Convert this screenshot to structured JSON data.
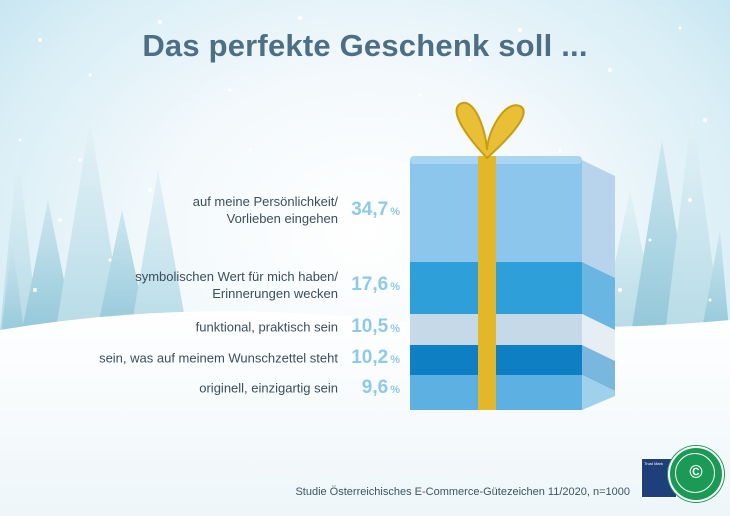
{
  "title": "Das perfekte Geschenk soll ...",
  "source": "Studie Österreichisches E-Commerce-Gütezeichen 11/2020, n=1000",
  "colors": {
    "title": "#4d6f86",
    "value": "#8fc9e9",
    "label": "#3c4d5c",
    "box_front": "#8dc6ec",
    "box_side": "#b7d4ec",
    "ribbon": "#e2b72a"
  },
  "chart_data": {
    "type": "bar",
    "title": "Das perfekte Geschenk soll ...",
    "unit": "%",
    "categories": [
      "auf meine Persönlichkeit/ Vorlieben eingehen",
      "symbolischen Wert für mich haben/ Erinnerungen wecken",
      "funktional, praktisch sein",
      "sein, was auf meinem Wunschzettel steht",
      "originell, einzigartig sein"
    ],
    "values": [
      34.7,
      17.6,
      10.5,
      10.2,
      9.6
    ],
    "labels": [
      {
        "line1": "auf meine Persönlichkeit/",
        "line2": "Vorlieben eingehen",
        "value_text": "34,7"
      },
      {
        "line1": "symbolischen Wert für mich haben/",
        "line2": "Erinnerungen wecken",
        "value_text": "17,6"
      },
      {
        "line1": "funktional, praktisch sein",
        "line2": "",
        "value_text": "10,5"
      },
      {
        "line1": "sein, was auf meinem Wunschzettel steht",
        "line2": "",
        "value_text": "10,2"
      },
      {
        "line1": "originell, einzigartig sein",
        "line2": "",
        "value_text": "9,6"
      }
    ],
    "percent_sign": "%",
    "segment_colors": [
      "#8dc6ec",
      "#2e9fd8",
      "#c6d9e9",
      "#0f7fc4",
      "#5cb0e2"
    ],
    "segment_side_colors": [
      "#b7d4ec",
      "#69b6e2",
      "#e6edf3",
      "#7ab7de",
      "#9fd0ec"
    ]
  },
  "logos": {
    "flag_text": "Trust Mark",
    "seal_text": "ÖSTERREICHISCHES E-COMMERCE-GÜTEZEICHEN",
    "seal_icon": "c-check-icon"
  }
}
